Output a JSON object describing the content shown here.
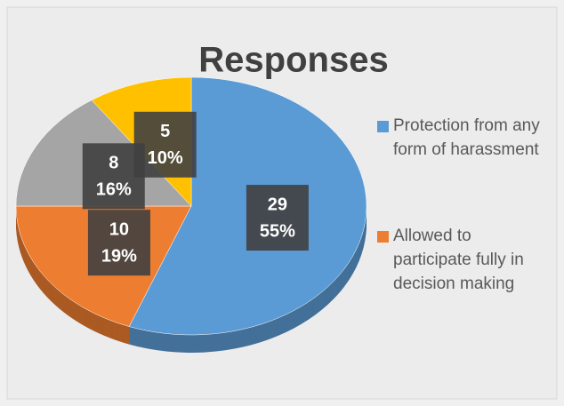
{
  "chart_data": {
    "type": "pie",
    "title": "Responses",
    "categories": [
      "Protection from any form of harassment",
      "Allowed to participate fully in decision making",
      null,
      null
    ],
    "values": [
      29,
      10,
      8,
      5
    ],
    "percent_labels": [
      "55%",
      "19%",
      "16%",
      "10%"
    ],
    "colors": [
      "#5b9bd5",
      "#ed7d31",
      "#a5a5a5",
      "#ffc000"
    ],
    "legend": "right"
  }
}
